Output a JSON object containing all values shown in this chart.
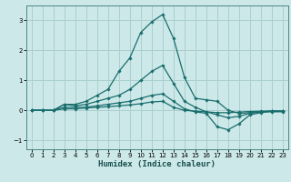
{
  "xlabel": "Humidex (Indice chaleur)",
  "bg_color": "#cce8e8",
  "grid_color": "#aacfcf",
  "line_color": "#1a6e6e",
  "xlim": [
    -0.5,
    23.5
  ],
  "ylim": [
    -1.3,
    3.5
  ],
  "xticks": [
    0,
    1,
    2,
    3,
    4,
    5,
    6,
    7,
    8,
    9,
    10,
    11,
    12,
    13,
    14,
    15,
    16,
    17,
    18,
    19,
    20,
    21,
    22,
    23
  ],
  "yticks": [
    -1,
    0,
    1,
    2,
    3
  ],
  "lines": [
    [
      0.0,
      0.0,
      0.0,
      0.2,
      0.2,
      0.3,
      0.5,
      0.7,
      1.3,
      1.75,
      2.6,
      2.95,
      3.2,
      2.4,
      1.1,
      0.4,
      0.35,
      0.3,
      0.0,
      -0.1,
      -0.08,
      -0.05,
      -0.05,
      -0.05
    ],
    [
      0.0,
      0.0,
      0.0,
      0.2,
      0.15,
      0.2,
      0.3,
      0.4,
      0.5,
      0.7,
      1.0,
      1.3,
      1.5,
      0.9,
      0.3,
      0.1,
      -0.05,
      -0.15,
      -0.25,
      -0.2,
      -0.1,
      -0.05,
      -0.03,
      -0.03
    ],
    [
      0.0,
      0.0,
      0.0,
      0.1,
      0.1,
      0.1,
      0.15,
      0.2,
      0.25,
      0.3,
      0.4,
      0.5,
      0.55,
      0.3,
      0.05,
      -0.05,
      -0.1,
      -0.55,
      -0.65,
      -0.45,
      -0.15,
      -0.08,
      -0.03,
      -0.03
    ],
    [
      0.0,
      0.0,
      0.0,
      0.05,
      0.05,
      0.08,
      0.1,
      0.12,
      0.15,
      0.18,
      0.22,
      0.28,
      0.3,
      0.1,
      0.0,
      -0.03,
      -0.05,
      -0.08,
      -0.08,
      -0.06,
      -0.04,
      -0.03,
      -0.02,
      -0.02
    ]
  ]
}
